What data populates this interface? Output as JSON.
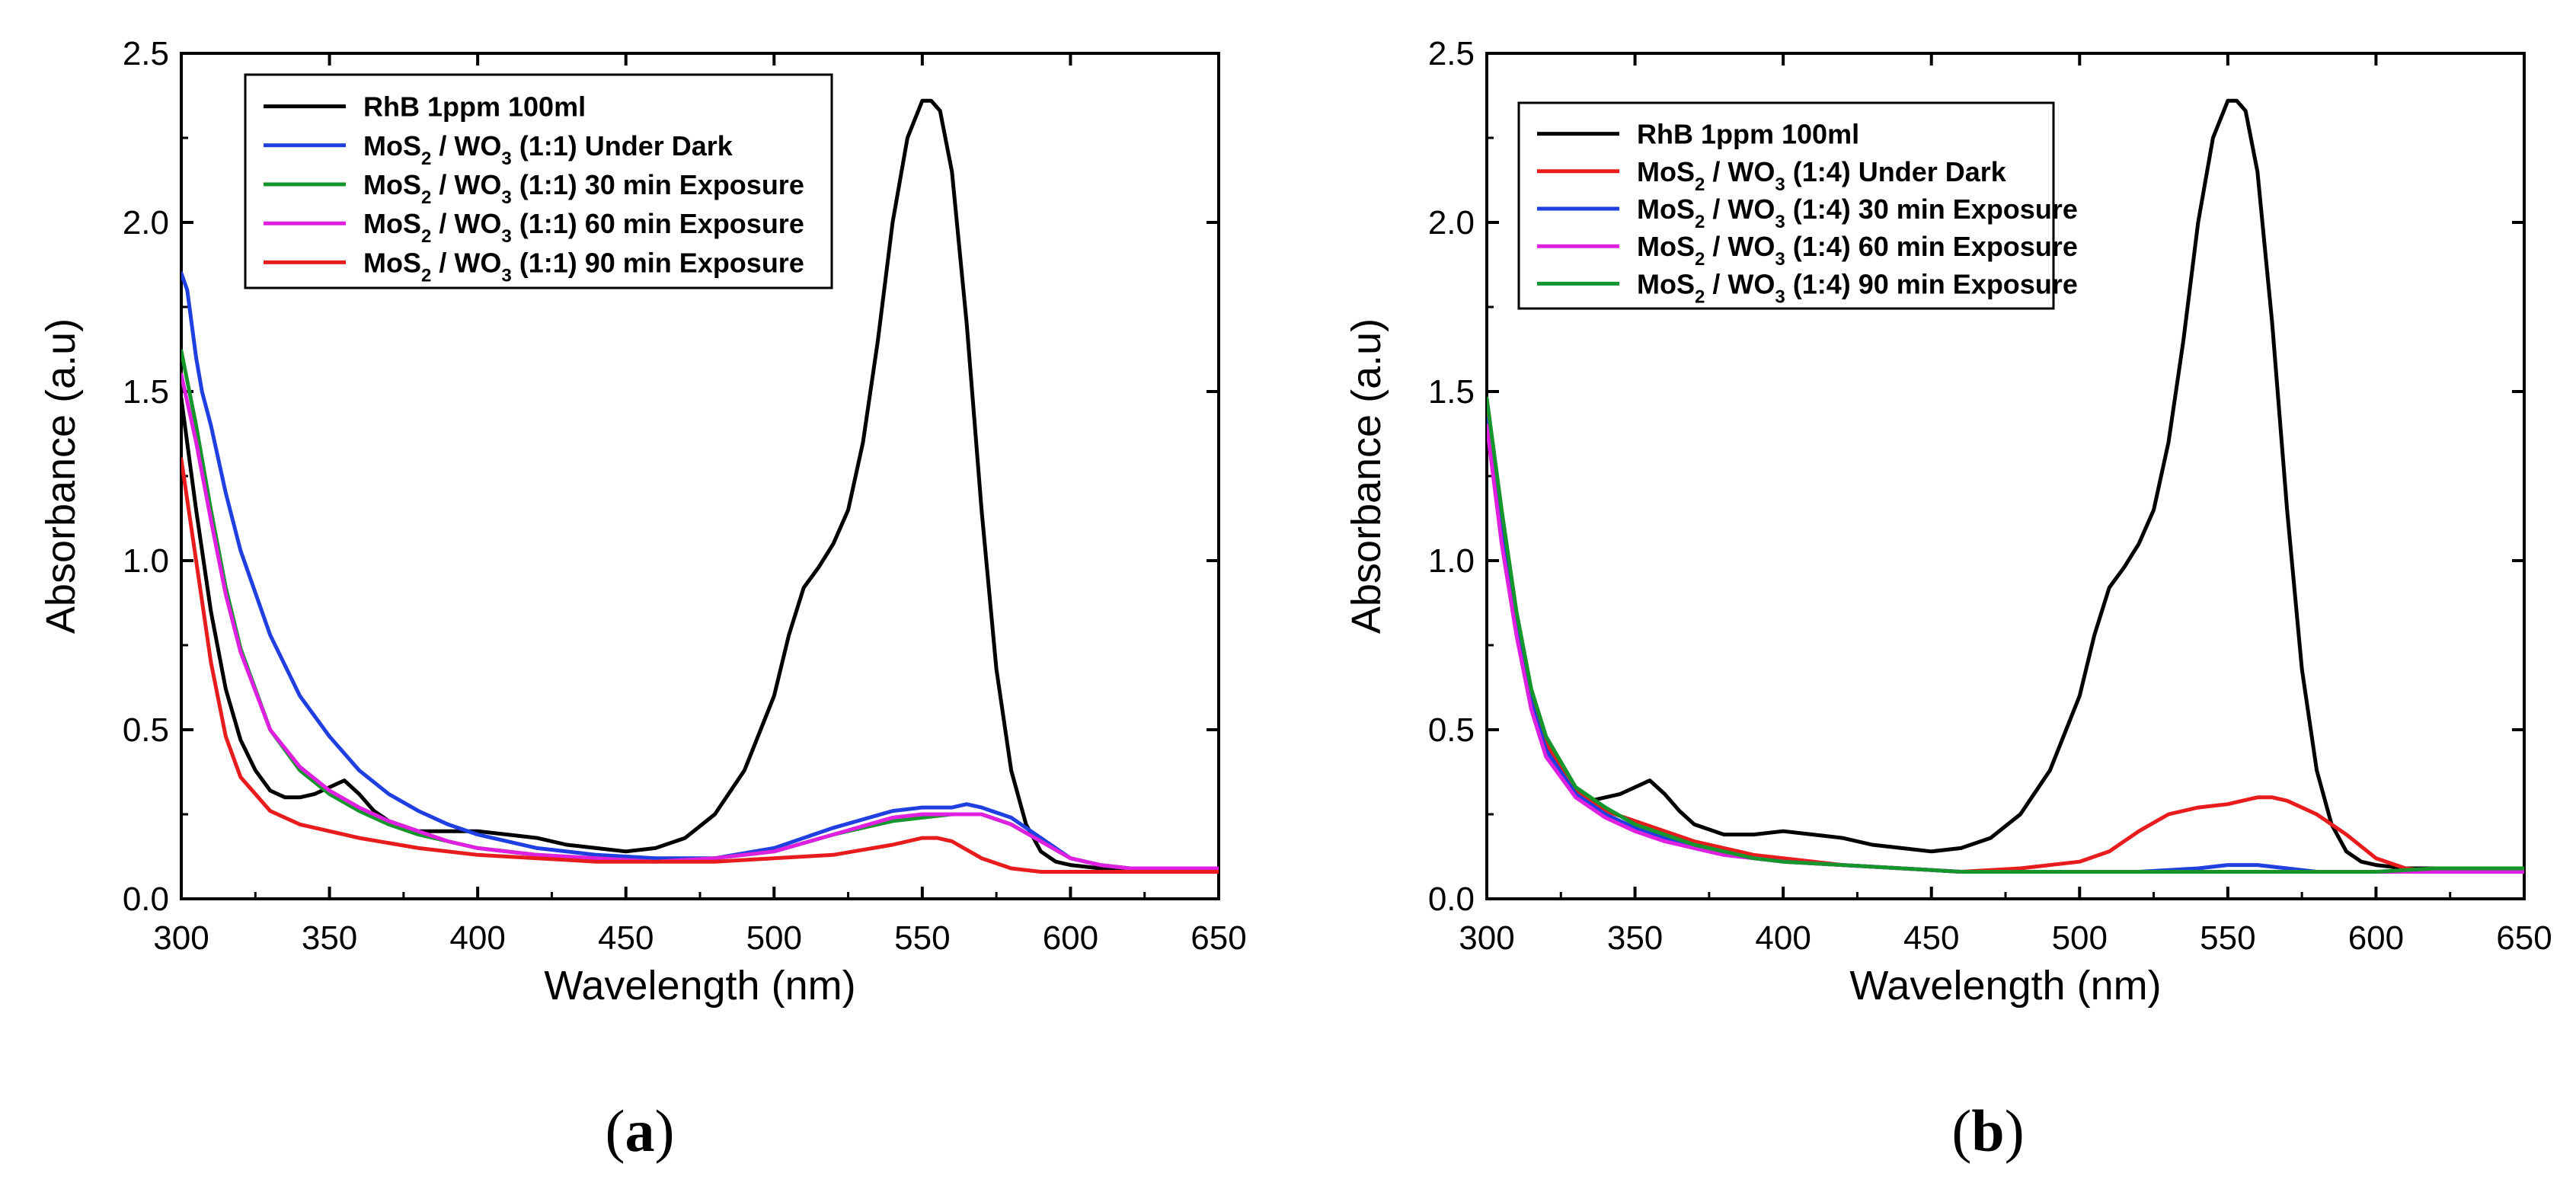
{
  "chart_data": [
    {
      "type": "line",
      "panel_label": "a",
      "xlabel": "Wavelength (nm)",
      "ylabel": "Absorbance (a.u)",
      "xlim": [
        300,
        650
      ],
      "ylim": [
        0,
        2.5
      ],
      "xticks": [
        300,
        350,
        400,
        450,
        500,
        550,
        600,
        650
      ],
      "yticks": [
        0.0,
        0.5,
        1.0,
        1.5,
        2.0,
        2.5
      ],
      "legend_position": "top-left",
      "series": [
        {
          "name": "RhB 1ppm 100ml",
          "legend": {
            "pre": "RhB 1ppm 100ml",
            "sub1": "",
            "mid": "",
            "sub2": "",
            "post": ""
          },
          "color": "#000000",
          "x": [
            300,
            305,
            310,
            315,
            320,
            325,
            330,
            335,
            340,
            345,
            350,
            355,
            360,
            365,
            370,
            380,
            390,
            400,
            410,
            420,
            430,
            440,
            450,
            460,
            470,
            480,
            490,
            500,
            505,
            510,
            515,
            520,
            525,
            530,
            535,
            540,
            545,
            550,
            553,
            556,
            560,
            565,
            570,
            575,
            580,
            585,
            590,
            595,
            600,
            610,
            620,
            630,
            640,
            650
          ],
          "y": [
            1.48,
            1.15,
            0.85,
            0.62,
            0.47,
            0.38,
            0.32,
            0.3,
            0.3,
            0.31,
            0.33,
            0.35,
            0.31,
            0.26,
            0.23,
            0.2,
            0.2,
            0.2,
            0.19,
            0.18,
            0.16,
            0.15,
            0.14,
            0.15,
            0.18,
            0.25,
            0.38,
            0.6,
            0.78,
            0.92,
            0.98,
            1.05,
            1.15,
            1.35,
            1.65,
            2.0,
            2.25,
            2.36,
            2.36,
            2.33,
            2.15,
            1.7,
            1.15,
            0.68,
            0.38,
            0.22,
            0.14,
            0.11,
            0.1,
            0.09,
            0.09,
            0.09,
            0.09,
            0.09
          ]
        },
        {
          "name": "MoS2 / WO3 (1:1) Under Dark",
          "legend": {
            "pre": "MoS",
            "sub1": "2",
            "mid": " / WO",
            "sub2": "3",
            "post": " (1:1)  Under Dark"
          },
          "color": "#1f3fe0",
          "x": [
            300,
            302,
            305,
            307,
            310,
            315,
            320,
            330,
            340,
            350,
            360,
            370,
            380,
            390,
            400,
            420,
            440,
            460,
            480,
            500,
            520,
            540,
            550,
            560,
            565,
            570,
            580,
            590,
            600,
            610,
            620,
            650
          ],
          "y": [
            1.85,
            1.8,
            1.6,
            1.5,
            1.4,
            1.2,
            1.03,
            0.78,
            0.6,
            0.48,
            0.38,
            0.31,
            0.26,
            0.22,
            0.19,
            0.15,
            0.13,
            0.12,
            0.12,
            0.15,
            0.21,
            0.26,
            0.27,
            0.27,
            0.28,
            0.27,
            0.24,
            0.18,
            0.12,
            0.1,
            0.09,
            0.09
          ]
        },
        {
          "name": "MoS2 / WO3 (1:1) 30 min Exposure",
          "legend": {
            "pre": "MoS",
            "sub1": "2",
            "mid": " / WO",
            "sub2": "3",
            "post": " (1:1)  30 min Exposure"
          },
          "color": "#14962d",
          "x": [
            300,
            305,
            310,
            315,
            320,
            330,
            340,
            350,
            360,
            370,
            380,
            390,
            400,
            420,
            440,
            460,
            480,
            500,
            520,
            540,
            550,
            560,
            565,
            570,
            580,
            590,
            600,
            610,
            620,
            650
          ],
          "y": [
            1.62,
            1.4,
            1.15,
            0.92,
            0.74,
            0.5,
            0.38,
            0.31,
            0.26,
            0.22,
            0.19,
            0.17,
            0.15,
            0.13,
            0.12,
            0.11,
            0.12,
            0.14,
            0.19,
            0.23,
            0.24,
            0.25,
            0.25,
            0.25,
            0.22,
            0.17,
            0.12,
            0.1,
            0.09,
            0.09
          ]
        },
        {
          "name": "MoS2 / WO3 (1:1) 60 min Exposure",
          "legend": {
            "pre": "MoS",
            "sub1": "2",
            "mid": " / WO",
            "sub2": "3",
            "post": " (1:1)  60 min Exposure"
          },
          "color": "#e020e0",
          "x": [
            300,
            305,
            310,
            315,
            320,
            330,
            340,
            350,
            360,
            370,
            380,
            390,
            400,
            420,
            440,
            460,
            480,
            500,
            520,
            540,
            550,
            560,
            565,
            570,
            580,
            590,
            600,
            610,
            620,
            650
          ],
          "y": [
            1.55,
            1.35,
            1.12,
            0.9,
            0.73,
            0.5,
            0.39,
            0.32,
            0.27,
            0.23,
            0.2,
            0.17,
            0.15,
            0.13,
            0.12,
            0.11,
            0.12,
            0.14,
            0.19,
            0.24,
            0.25,
            0.25,
            0.25,
            0.25,
            0.22,
            0.17,
            0.12,
            0.1,
            0.09,
            0.09
          ]
        },
        {
          "name": "MoS2 / WO3 (1:1) 90 min Exposure",
          "legend": {
            "pre": "MoS",
            "sub1": "2",
            "mid": " / WO",
            "sub2": "3",
            "post": " (1:1)  90 min Exposure"
          },
          "color": "#e81c1c",
          "x": [
            300,
            305,
            310,
            315,
            320,
            330,
            340,
            350,
            360,
            380,
            400,
            420,
            440,
            460,
            480,
            500,
            520,
            540,
            550,
            555,
            560,
            570,
            580,
            590,
            600,
            620,
            650
          ],
          "y": [
            1.3,
            1.0,
            0.7,
            0.48,
            0.36,
            0.26,
            0.22,
            0.2,
            0.18,
            0.15,
            0.13,
            0.12,
            0.11,
            0.11,
            0.11,
            0.12,
            0.13,
            0.16,
            0.18,
            0.18,
            0.17,
            0.12,
            0.09,
            0.08,
            0.08,
            0.08,
            0.08
          ]
        }
      ]
    },
    {
      "type": "line",
      "panel_label": "b",
      "xlabel": "Wavelength (nm)",
      "ylabel": "Absorbance (a.u)",
      "xlim": [
        300,
        650
      ],
      "ylim": [
        0,
        2.5
      ],
      "xticks": [
        300,
        350,
        400,
        450,
        500,
        550,
        600,
        650
      ],
      "yticks": [
        0.0,
        0.5,
        1.0,
        1.5,
        2.0,
        2.5
      ],
      "legend_position": "top-left",
      "series": [
        {
          "name": "RhB 1ppm 100ml",
          "legend": {
            "pre": "RhB 1ppm 100ml",
            "sub1": "",
            "mid": "",
            "sub2": "",
            "post": ""
          },
          "color": "#000000",
          "x": [
            300,
            305,
            310,
            315,
            320,
            325,
            330,
            335,
            340,
            345,
            350,
            355,
            360,
            365,
            370,
            380,
            390,
            400,
            410,
            420,
            430,
            440,
            450,
            460,
            470,
            480,
            490,
            500,
            505,
            510,
            515,
            520,
            525,
            530,
            535,
            540,
            545,
            550,
            553,
            556,
            560,
            565,
            570,
            575,
            580,
            585,
            590,
            595,
            600,
            610,
            620,
            630,
            640,
            650
          ],
          "y": [
            1.45,
            1.12,
            0.83,
            0.6,
            0.46,
            0.37,
            0.31,
            0.29,
            0.3,
            0.31,
            0.33,
            0.35,
            0.31,
            0.26,
            0.22,
            0.19,
            0.19,
            0.2,
            0.19,
            0.18,
            0.16,
            0.15,
            0.14,
            0.15,
            0.18,
            0.25,
            0.38,
            0.6,
            0.78,
            0.92,
            0.98,
            1.05,
            1.15,
            1.35,
            1.65,
            2.0,
            2.25,
            2.36,
            2.36,
            2.33,
            2.15,
            1.7,
            1.15,
            0.68,
            0.38,
            0.22,
            0.14,
            0.11,
            0.1,
            0.09,
            0.09,
            0.09,
            0.09,
            0.09
          ]
        },
        {
          "name": "MoS2 / WO3 (1:4) Under Dark",
          "legend": {
            "pre": "MoS",
            "sub1": "2",
            "mid": " / WO",
            "sub2": "3",
            "post": " (1:4)  Under Dark"
          },
          "color": "#e81c1c",
          "x": [
            300,
            305,
            310,
            315,
            320,
            330,
            340,
            350,
            360,
            370,
            380,
            390,
            400,
            420,
            440,
            460,
            480,
            500,
            510,
            520,
            530,
            540,
            550,
            555,
            560,
            565,
            570,
            580,
            590,
            600,
            610,
            620,
            650
          ],
          "y": [
            1.45,
            1.12,
            0.83,
            0.6,
            0.46,
            0.32,
            0.26,
            0.23,
            0.2,
            0.17,
            0.15,
            0.13,
            0.12,
            0.1,
            0.09,
            0.08,
            0.09,
            0.11,
            0.14,
            0.2,
            0.25,
            0.27,
            0.28,
            0.29,
            0.3,
            0.3,
            0.29,
            0.25,
            0.19,
            0.12,
            0.09,
            0.08,
            0.08
          ]
        },
        {
          "name": "MoS2 / WO3 (1:4) 30 min Exposure",
          "legend": {
            "pre": "MoS",
            "sub1": "2",
            "mid": " / WO",
            "sub2": "3",
            "post": " (1:4)  30 min Exposure"
          },
          "color": "#1f3fe0",
          "x": [
            300,
            305,
            310,
            315,
            320,
            330,
            340,
            350,
            360,
            370,
            380,
            390,
            400,
            420,
            440,
            460,
            480,
            500,
            520,
            540,
            550,
            555,
            560,
            570,
            580,
            600,
            650
          ],
          "y": [
            1.42,
            1.08,
            0.8,
            0.58,
            0.44,
            0.31,
            0.25,
            0.21,
            0.18,
            0.15,
            0.13,
            0.12,
            0.11,
            0.1,
            0.09,
            0.08,
            0.08,
            0.08,
            0.08,
            0.09,
            0.1,
            0.1,
            0.1,
            0.09,
            0.08,
            0.08,
            0.08
          ]
        },
        {
          "name": "MoS2 / WO3 (1:4) 60 min Exposure",
          "legend": {
            "pre": "MoS",
            "sub1": "2",
            "mid": " / WO",
            "sub2": "3",
            "post": " (1:4)  60 min Exposure"
          },
          "color": "#e020e0",
          "x": [
            300,
            305,
            310,
            315,
            320,
            330,
            340,
            350,
            360,
            370,
            380,
            390,
            400,
            420,
            440,
            460,
            480,
            500,
            520,
            540,
            560,
            580,
            600,
            650
          ],
          "y": [
            1.4,
            1.05,
            0.78,
            0.56,
            0.42,
            0.3,
            0.24,
            0.2,
            0.17,
            0.15,
            0.13,
            0.12,
            0.11,
            0.1,
            0.09,
            0.08,
            0.08,
            0.08,
            0.08,
            0.08,
            0.08,
            0.08,
            0.08,
            0.08
          ]
        },
        {
          "name": "MoS2 / WO3 (1:4) 90 min Exposure",
          "legend": {
            "pre": "MoS",
            "sub1": "2",
            "mid": " / WO",
            "sub2": "3",
            "post": " (1:4)  90 min Exposure"
          },
          "color": "#14962d",
          "x": [
            300,
            305,
            310,
            315,
            320,
            330,
            340,
            350,
            360,
            370,
            380,
            390,
            400,
            420,
            440,
            460,
            480,
            500,
            520,
            540,
            560,
            580,
            600,
            620,
            650
          ],
          "y": [
            1.48,
            1.15,
            0.85,
            0.62,
            0.48,
            0.33,
            0.27,
            0.22,
            0.19,
            0.16,
            0.14,
            0.12,
            0.11,
            0.1,
            0.09,
            0.08,
            0.08,
            0.08,
            0.08,
            0.08,
            0.08,
            0.08,
            0.08,
            0.09,
            0.09
          ]
        }
      ]
    }
  ]
}
